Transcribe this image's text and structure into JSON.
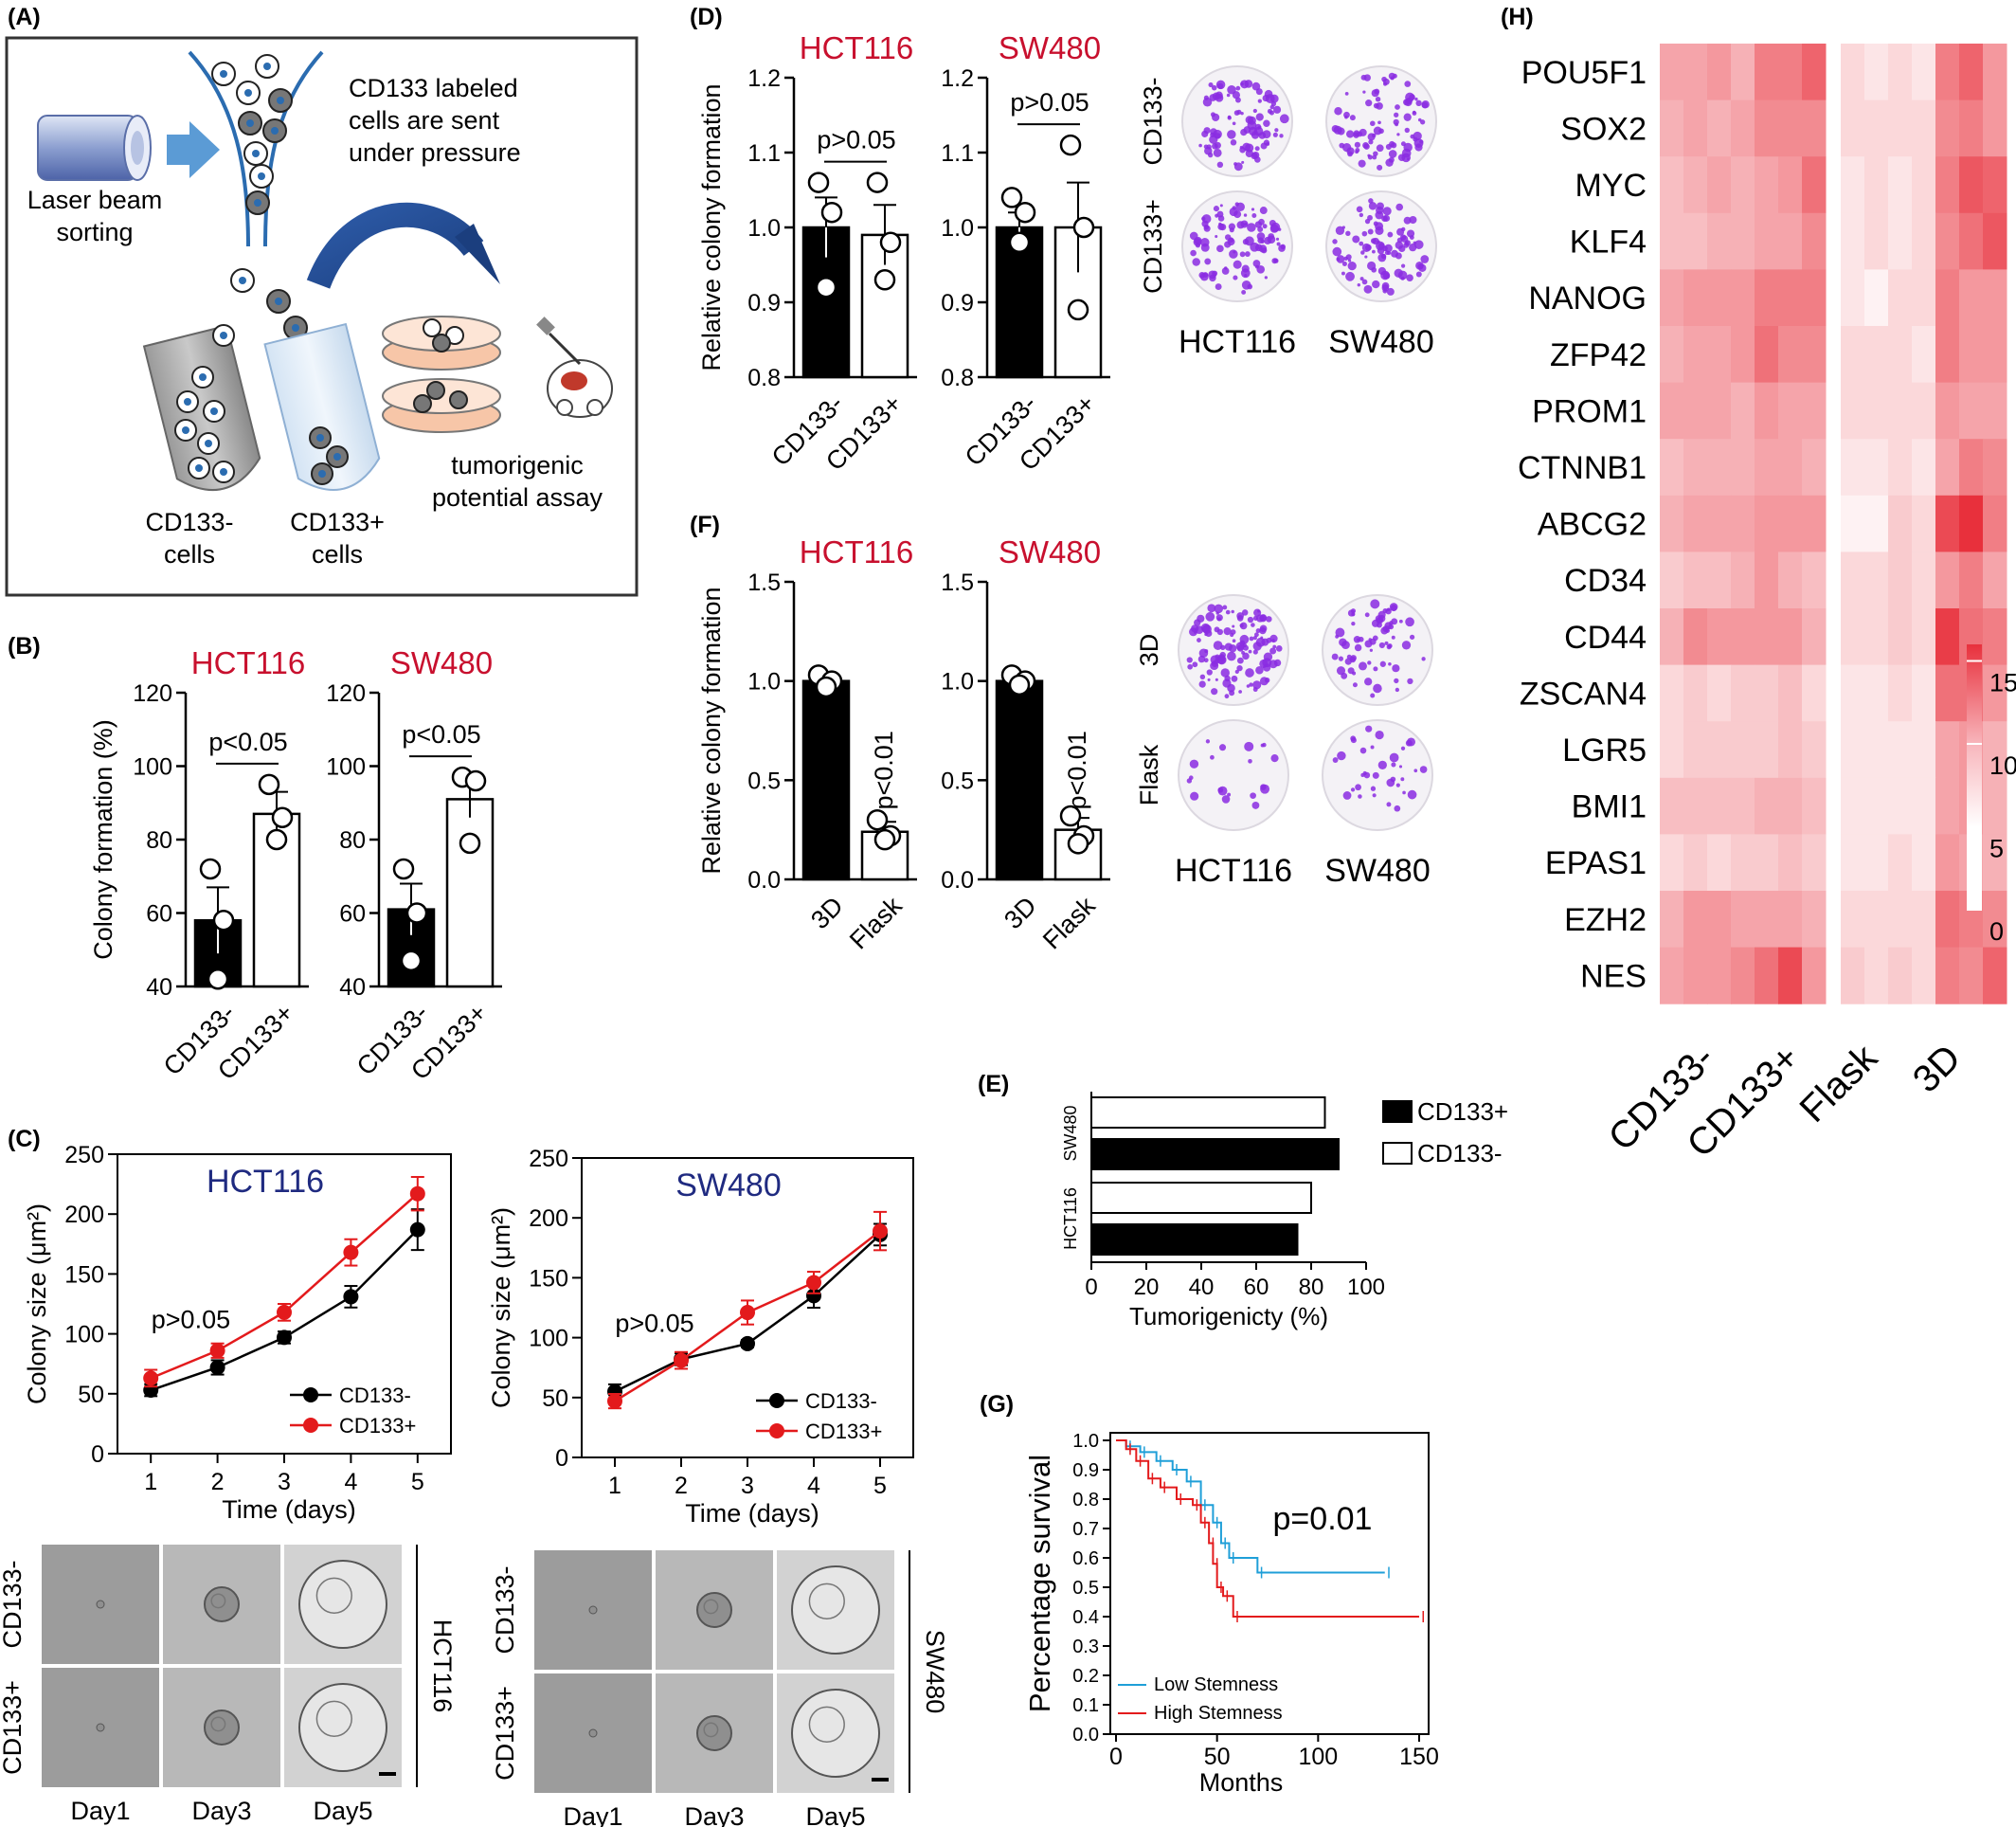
{
  "panel_letters": {
    "A": "(A)",
    "B": "(B)",
    "C": "(C)",
    "D": "(D)",
    "E": "(E)",
    "F": "(F)",
    "G": "(G)",
    "H": "(H)"
  },
  "colors": {
    "red_title": "#c8102e",
    "blue_title": "#1f2a80",
    "cd133_plus_line": "#e31a1c",
    "cd133_minus_line": "#000000",
    "low_stemness": "#1f9fd8",
    "high_stemness": "#e31a1c",
    "heatmap_high": "#e8303c",
    "heatmap_low": "#ffffff",
    "crystal_violet": "#8a2be2"
  },
  "panel_a": {
    "laser_label_1": "Laser beam",
    "laser_label_2": "sorting",
    "flow_label_1": "CD133 labeled",
    "flow_label_2": "cells are sent",
    "flow_label_3": "under pressure",
    "tube_minus_1": "CD133-",
    "tube_minus_2": "cells",
    "tube_plus_1": "CD133+",
    "tube_plus_2": "cells",
    "assay_1": "tumorigenic",
    "assay_2": "potential assay"
  },
  "panel_c_images": {
    "rows": [
      "CD133-",
      "CD133+"
    ],
    "days": [
      "Day1",
      "Day3",
      "Day5"
    ],
    "side_labels": [
      "HCT116",
      "SW480"
    ]
  },
  "panel_d_images": {
    "rows": [
      "CD133-",
      "CD133+"
    ],
    "cols": [
      "HCT116",
      "SW480"
    ]
  },
  "panel_f_images": {
    "rows": [
      "3D",
      "Flask"
    ],
    "cols": [
      "HCT116",
      "SW480"
    ]
  },
  "chart_data": [
    {
      "id": "B1",
      "type": "bar",
      "title": "HCT116",
      "ylabel": "Colony formation (%)",
      "categories": [
        "CD133-",
        "CD133+"
      ],
      "values": [
        58,
        87
      ],
      "errors": [
        9,
        6
      ],
      "points": [
        [
          72,
          58,
          42
        ],
        [
          95,
          86,
          80
        ]
      ],
      "ylim": [
        40,
        120
      ],
      "yticks": [
        40,
        60,
        80,
        100,
        120
      ],
      "annotation": "p<0.05"
    },
    {
      "id": "B2",
      "type": "bar",
      "title": "SW480",
      "ylabel": "",
      "categories": [
        "CD133-",
        "CD133+"
      ],
      "values": [
        61,
        91
      ],
      "errors": [
        7,
        5
      ],
      "points": [
        [
          72,
          60,
          47
        ],
        [
          97,
          96,
          79
        ]
      ],
      "ylim": [
        40,
        120
      ],
      "yticks": [
        40,
        60,
        80,
        100,
        120
      ],
      "annotation": "p<0.05"
    },
    {
      "id": "C1",
      "type": "line",
      "title": "HCT116",
      "xlabel": "Time (days)",
      "ylabel": "Colony size (μm²)",
      "x": [
        1,
        2,
        3,
        4,
        5
      ],
      "xlim": [
        0.5,
        5.5
      ],
      "ylim": [
        0,
        250
      ],
      "yticks": [
        0,
        50,
        100,
        150,
        200,
        250
      ],
      "annotation": "p>0.05",
      "series": [
        {
          "name": "CD133-",
          "values": [
            53,
            72,
            97,
            131,
            187
          ],
          "errors": [
            5,
            6,
            5,
            9,
            17
          ]
        },
        {
          "name": "CD133+",
          "values": [
            63,
            86,
            118,
            168,
            217
          ],
          "errors": [
            7,
            6,
            7,
            11,
            14
          ]
        }
      ]
    },
    {
      "id": "C2",
      "type": "line",
      "title": "SW480",
      "xlabel": "Time (days)",
      "ylabel": "Colony size (μm²)",
      "x": [
        1,
        2,
        3,
        4,
        5
      ],
      "xlim": [
        0.5,
        5.5
      ],
      "ylim": [
        0,
        250
      ],
      "yticks": [
        0,
        50,
        100,
        150,
        200,
        250
      ],
      "annotation": "p>0.05",
      "series": [
        {
          "name": "CD133-",
          "values": [
            55,
            82,
            95,
            135,
            186
          ],
          "errors": [
            6,
            5,
            3,
            10,
            9
          ]
        },
        {
          "name": "CD133+",
          "values": [
            47,
            81,
            121,
            146,
            189
          ],
          "errors": [
            6,
            7,
            10,
            9,
            16
          ]
        }
      ]
    },
    {
      "id": "D1",
      "type": "bar",
      "title": "HCT116",
      "ylabel": "Relative colony formation",
      "categories": [
        "CD133-",
        "CD133+"
      ],
      "values": [
        1.0,
        0.99
      ],
      "errors": [
        0.04,
        0.04
      ],
      "points": [
        [
          1.06,
          1.02,
          0.92
        ],
        [
          1.06,
          0.98,
          0.93
        ]
      ],
      "ylim": [
        0.8,
        1.2
      ],
      "yticks": [
        0.8,
        0.9,
        1.0,
        1.1,
        1.2
      ],
      "annotation": "p>0.05"
    },
    {
      "id": "D2",
      "type": "bar",
      "title": "SW480",
      "ylabel": "",
      "categories": [
        "CD133-",
        "CD133+"
      ],
      "values": [
        1.0,
        1.0
      ],
      "errors": [
        0.02,
        0.06
      ],
      "points": [
        [
          1.04,
          1.02,
          0.98
        ],
        [
          1.11,
          1.0,
          0.89
        ]
      ],
      "ylim": [
        0.8,
        1.2
      ],
      "yticks": [
        0.8,
        0.9,
        1.0,
        1.1,
        1.2
      ],
      "annotation": "p>0.05"
    },
    {
      "id": "F1",
      "type": "bar",
      "title": "HCT116",
      "ylabel": "Relative colony formation",
      "categories": [
        "3D",
        "Flask"
      ],
      "values": [
        1.0,
        0.24
      ],
      "errors": [
        0.02,
        0.05
      ],
      "points": [
        [
          1.03,
          1.0,
          0.97
        ],
        [
          0.3,
          0.22,
          0.2
        ]
      ],
      "ylim": [
        0,
        1.5
      ],
      "yticks": [
        0.0,
        0.5,
        1.0,
        1.5
      ],
      "annotation": "p<0.01"
    },
    {
      "id": "F2",
      "type": "bar",
      "title": "SW480",
      "ylabel": "",
      "categories": [
        "3D",
        "Flask"
      ],
      "values": [
        1.0,
        0.25
      ],
      "errors": [
        0.02,
        0.06
      ],
      "points": [
        [
          1.03,
          1.0,
          0.98
        ],
        [
          0.32,
          0.22,
          0.18
        ]
      ],
      "ylim": [
        0,
        1.5
      ],
      "yticks": [
        0.0,
        0.5,
        1.0,
        1.5
      ],
      "annotation": "p<0.01"
    },
    {
      "id": "E",
      "type": "bar",
      "orientation": "horizontal",
      "xlabel": "Tumorigenicty (%)",
      "categories": [
        "SW480",
        "HCT116"
      ],
      "xlim": [
        0,
        100
      ],
      "xticks": [
        0,
        20,
        40,
        60,
        80,
        100
      ],
      "series": [
        {
          "name": "CD133+",
          "values": [
            90,
            75
          ]
        },
        {
          "name": "CD133-",
          "values": [
            85,
            80
          ]
        }
      ]
    },
    {
      "id": "G",
      "type": "line",
      "subtype": "kaplan-meier",
      "xlabel": "Months",
      "ylabel": "Percentage survival",
      "xlim": [
        0,
        150
      ],
      "ylim": [
        0,
        1.0
      ],
      "xticks": [
        0,
        50,
        100,
        150
      ],
      "yticks": [
        0.0,
        0.1,
        0.2,
        0.3,
        0.4,
        0.5,
        0.6,
        0.7,
        0.8,
        0.9,
        1.0
      ],
      "annotation": "p=0.01",
      "series": [
        {
          "name": "Low Stemness",
          "steps": [
            [
              0,
              1.0
            ],
            [
              5,
              0.98
            ],
            [
              12,
              0.96
            ],
            [
              20,
              0.93
            ],
            [
              28,
              0.9
            ],
            [
              35,
              0.86
            ],
            [
              42,
              0.78
            ],
            [
              48,
              0.72
            ],
            [
              52,
              0.65
            ],
            [
              56,
              0.6
            ],
            [
              70,
              0.55
            ],
            [
              133,
              0.55
            ]
          ]
        },
        {
          "name": "High Stemness",
          "steps": [
            [
              0,
              1.0
            ],
            [
              5,
              0.97
            ],
            [
              10,
              0.93
            ],
            [
              16,
              0.87
            ],
            [
              22,
              0.84
            ],
            [
              30,
              0.8
            ],
            [
              38,
              0.78
            ],
            [
              42,
              0.72
            ],
            [
              46,
              0.65
            ],
            [
              48,
              0.58
            ],
            [
              50,
              0.5
            ],
            [
              53,
              0.47
            ],
            [
              58,
              0.4
            ],
            [
              150,
              0.4
            ]
          ]
        }
      ]
    },
    {
      "id": "H",
      "type": "heatmap",
      "rows": [
        "POU5F1",
        "SOX2",
        "MYC",
        "KLF4",
        "NANOG",
        "ZFP42",
        "PROM1",
        "CTNNB1",
        "ABCG2",
        "CD34",
        "CD44",
        "ZSCAN4",
        "LGR5",
        "BMI1",
        "EPAS1",
        "EZH2",
        "NES"
      ],
      "groups": [
        "CD133-",
        "CD133+",
        "Flask",
        "3D"
      ],
      "colorbar": {
        "min": 0,
        "max": 16,
        "ticks": [
          0,
          5,
          10,
          15
        ]
      },
      "values": [
        [
          7,
          7,
          8,
          6,
          10,
          10,
          12,
          3,
          2,
          3,
          2,
          10,
          12,
          8
        ],
        [
          6,
          7,
          6,
          7,
          9,
          9,
          9,
          3,
          3,
          3,
          3,
          9,
          10,
          8
        ],
        [
          5,
          6,
          7,
          6,
          7,
          8,
          11,
          2,
          3,
          2,
          3,
          10,
          13,
          12
        ],
        [
          5,
          5,
          6,
          6,
          7,
          7,
          9,
          2,
          3,
          2,
          3,
          9,
          11,
          13
        ],
        [
          7,
          8,
          8,
          8,
          10,
          10,
          10,
          2,
          1,
          3,
          3,
          10,
          8,
          8
        ],
        [
          6,
          7,
          7,
          8,
          11,
          9,
          9,
          3,
          3,
          3,
          2,
          10,
          8,
          8
        ],
        [
          7,
          7,
          7,
          6,
          8,
          7,
          7,
          3,
          3,
          3,
          3,
          8,
          7,
          7
        ],
        [
          5,
          6,
          6,
          6,
          7,
          7,
          6,
          2,
          2,
          3,
          2,
          7,
          10,
          9
        ],
        [
          6,
          7,
          7,
          7,
          8,
          8,
          8,
          1,
          1,
          4,
          3,
          14,
          16,
          10
        ],
        [
          4,
          5,
          5,
          6,
          8,
          6,
          5,
          3,
          3,
          4,
          3,
          8,
          10,
          7
        ],
        [
          6,
          9,
          8,
          8,
          8,
          8,
          6,
          3,
          3,
          4,
          3,
          15,
          11,
          10
        ],
        [
          3,
          4,
          3,
          4,
          4,
          5,
          3,
          2,
          2,
          3,
          2,
          11,
          11,
          8
        ],
        [
          3,
          4,
          4,
          4,
          4,
          5,
          4,
          2,
          2,
          2,
          2,
          7,
          8,
          6
        ],
        [
          5,
          5,
          5,
          5,
          6,
          6,
          5,
          2,
          2,
          2,
          2,
          7,
          8,
          6
        ],
        [
          3,
          4,
          3,
          4,
          4,
          5,
          4,
          2,
          2,
          3,
          2,
          8,
          7,
          6
        ],
        [
          6,
          8,
          8,
          7,
          7,
          7,
          6,
          3,
          3,
          3,
          3,
          11,
          10,
          9
        ],
        [
          7,
          8,
          8,
          9,
          11,
          14,
          8,
          4,
          3,
          4,
          3,
          10,
          9,
          12
        ]
      ]
    }
  ]
}
